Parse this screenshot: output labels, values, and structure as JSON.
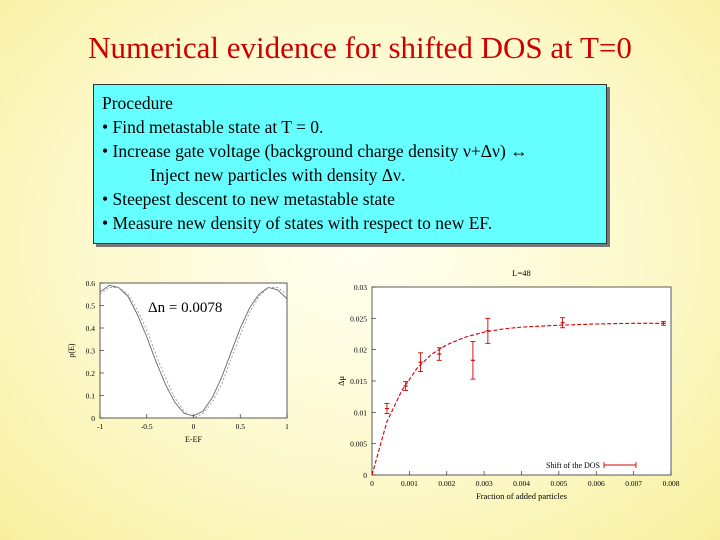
{
  "title": "Numerical evidence for shifted DOS at T=0",
  "procedure": {
    "heading": "Procedure",
    "items": [
      "• Find metastable state at T = 0.",
      "• Increase gate voltage (background charge density ν+Δν) ↔",
      "Inject new particles with density Δν.",
      "• Steepest descent to new metastable state",
      "• Measure new density of states with respect to new EF."
    ]
  },
  "chart_data": [
    {
      "type": "line",
      "annotation": "Δn = 0.0078",
      "xlabel": "E-EF",
      "ylabel": "ρ(E)",
      "xlim": [
        -1,
        1
      ],
      "ylim": [
        0,
        0.6
      ],
      "xticks": [
        -1,
        -0.5,
        0,
        0.5,
        1
      ],
      "xtick_labels": [
        "-1",
        "-0.5",
        "0",
        "0.5",
        "1"
      ],
      "yticks": [
        0,
        0.1,
        0.2,
        0.3,
        0.4,
        0.5,
        0.6
      ],
      "ytick_labels": [
        "0",
        "0.1",
        "0.2",
        "0.3",
        "0.4",
        "0.5",
        "0.6"
      ],
      "series": [
        {
          "x": [
            -1,
            -0.9,
            -0.8,
            -0.7,
            -0.6,
            -0.5,
            -0.4,
            -0.3,
            -0.2,
            -0.1,
            0,
            0.1,
            0.2,
            0.3,
            0.4,
            0.5,
            0.6,
            0.7,
            0.8,
            0.9,
            1
          ],
          "y": [
            0.56,
            0.59,
            0.58,
            0.54,
            0.46,
            0.36,
            0.25,
            0.15,
            0.07,
            0.02,
            0.01,
            0.03,
            0.09,
            0.18,
            0.29,
            0.4,
            0.49,
            0.55,
            0.58,
            0.57,
            0.53
          ]
        },
        {
          "x": [
            -1,
            -0.9,
            -0.8,
            -0.7,
            -0.6,
            -0.5,
            -0.4,
            -0.3,
            -0.2,
            -0.1,
            0,
            0.1,
            0.2,
            0.3,
            0.4,
            0.5,
            0.6,
            0.7,
            0.8,
            0.9,
            1
          ],
          "y": [
            0.55,
            0.58,
            0.58,
            0.55,
            0.48,
            0.39,
            0.28,
            0.18,
            0.09,
            0.03,
            0.0,
            0.02,
            0.07,
            0.15,
            0.26,
            0.37,
            0.47,
            0.54,
            0.58,
            0.58,
            0.55
          ]
        }
      ]
    },
    {
      "type": "line",
      "title": "L=48",
      "xlabel": "Fraction of added particles",
      "ylabel": "Δμ",
      "xlim": [
        0,
        0.008
      ],
      "ylim": [
        0,
        0.03
      ],
      "xticks": [
        0,
        0.001,
        0.002,
        0.003,
        0.004,
        0.005,
        0.006,
        0.007,
        0.008
      ],
      "xtick_labels": [
        "0",
        "0.001",
        "0.002",
        "0.003",
        "0.004",
        "0.005",
        "0.006",
        "0.007",
        "0.008"
      ],
      "yticks": [
        0,
        0.005,
        0.01,
        0.015,
        0.02,
        0.025,
        0.03
      ],
      "ytick_labels": [
        "0",
        "0.005",
        "0.01",
        "0.015",
        "0.02",
        "0.025",
        "0.03"
      ],
      "legend": "bottom-right",
      "series": [
        {
          "name": "Shift of the DOS",
          "x": [
            0.0004,
            0.0009,
            0.0013,
            0.0018,
            0.0027,
            0.0031,
            0.0051,
            0.0078
          ],
          "y": [
            0.0106,
            0.0142,
            0.018,
            0.0193,
            0.0183,
            0.023,
            0.0243,
            0.0242
          ],
          "yerr": [
            0.0008,
            0.0007,
            0.0015,
            0.001,
            0.003,
            0.002,
            0.0008,
            0.0003
          ]
        }
      ],
      "fit_curve": {
        "x": [
          0,
          0.0004,
          0.0008,
          0.0012,
          0.0016,
          0.002,
          0.0025,
          0.003,
          0.0035,
          0.004,
          0.005,
          0.006,
          0.007,
          0.0078
        ],
        "y": [
          0.0,
          0.0085,
          0.0135,
          0.017,
          0.0193,
          0.0208,
          0.022,
          0.0228,
          0.0233,
          0.0236,
          0.0239,
          0.0241,
          0.0242,
          0.0242
        ]
      }
    }
  ]
}
